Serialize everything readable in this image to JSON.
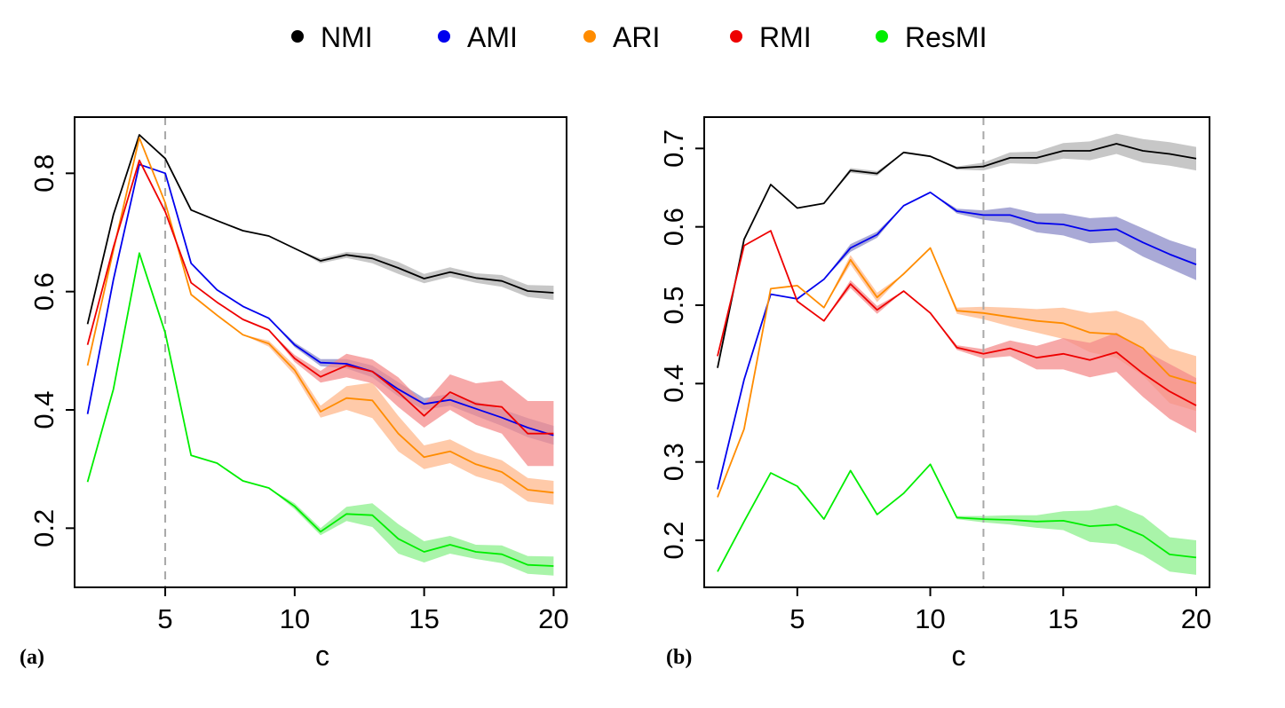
{
  "legend": [
    {
      "label": "NMI",
      "color": "#000000"
    },
    {
      "label": "AMI",
      "color": "#0000ee"
    },
    {
      "label": "ARI",
      "color": "#ff8c00"
    },
    {
      "label": "RMI",
      "color": "#ee0000"
    },
    {
      "label": "ResMI",
      "color": "#00ee00"
    }
  ],
  "chart_data": [
    {
      "type": "line",
      "panel_label": "(a)",
      "xlabel": "c",
      "ylabel": "",
      "xlim": [
        1.5,
        20.5
      ],
      "ylim": [
        0.1,
        0.895
      ],
      "xticks": [
        5,
        10,
        15,
        20
      ],
      "yticks": [
        0.2,
        0.4,
        0.6,
        0.8
      ],
      "ytick_labels": [
        "0.2",
        "0.4",
        "0.6",
        "0.8"
      ],
      "vline": 5,
      "x": [
        2,
        3,
        4,
        5,
        6,
        7,
        8,
        9,
        10,
        11,
        12,
        13,
        14,
        15,
        16,
        17,
        18,
        19,
        20
      ],
      "series": [
        {
          "name": "NMI",
          "color": "#000000",
          "fill": "#b4b4b4",
          "values": [
            0.545,
            0.73,
            0.865,
            0.825,
            0.738,
            0.72,
            0.703,
            0.694,
            0.673,
            0.652,
            0.662,
            0.656,
            0.64,
            0.622,
            0.633,
            0.623,
            0.618,
            0.601,
            0.598
          ],
          "band": [
            0,
            0,
            0,
            0,
            0,
            0,
            0,
            0,
            0,
            0.004,
            0.005,
            0.008,
            0.01,
            0.008,
            0.008,
            0.008,
            0.01,
            0.01,
            0.012
          ]
        },
        {
          "name": "AMI",
          "color": "#0000ee",
          "fill": "#8c8cc8",
          "values": [
            0.393,
            0.62,
            0.815,
            0.8,
            0.648,
            0.603,
            0.575,
            0.555,
            0.51,
            0.48,
            0.478,
            0.465,
            0.435,
            0.41,
            0.417,
            0.402,
            0.387,
            0.37,
            0.357
          ],
          "band": [
            0,
            0,
            0,
            0,
            0,
            0,
            0,
            0,
            0.004,
            0.006,
            0.008,
            0.01,
            0.012,
            0.01,
            0.01,
            0.012,
            0.014,
            0.016,
            0.016
          ]
        },
        {
          "name": "ARI",
          "color": "#ff8c00",
          "fill": "#ffb88c",
          "values": [
            0.475,
            0.67,
            0.86,
            0.75,
            0.595,
            0.56,
            0.527,
            0.512,
            0.467,
            0.397,
            0.42,
            0.416,
            0.36,
            0.32,
            0.33,
            0.308,
            0.295,
            0.265,
            0.26
          ],
          "band": [
            0,
            0,
            0,
            0,
            0,
            0,
            0,
            0.005,
            0.008,
            0.01,
            0.02,
            0.03,
            0.03,
            0.02,
            0.02,
            0.02,
            0.02,
            0.02,
            0.02
          ]
        },
        {
          "name": "RMI",
          "color": "#ee0000",
          "fill": "#f48c8c",
          "values": [
            0.51,
            0.675,
            0.822,
            0.735,
            0.615,
            0.582,
            0.553,
            0.535,
            0.487,
            0.456,
            0.475,
            0.465,
            0.43,
            0.39,
            0.43,
            0.41,
            0.405,
            0.36,
            0.36
          ],
          "band": [
            0,
            0,
            0,
            0,
            0,
            0,
            0,
            0,
            0.006,
            0.01,
            0.02,
            0.02,
            0.025,
            0.02,
            0.03,
            0.035,
            0.045,
            0.055,
            0.055
          ]
        },
        {
          "name": "ResMI",
          "color": "#00ee00",
          "fill": "#8cf08c",
          "values": [
            0.278,
            0.435,
            0.665,
            0.53,
            0.323,
            0.31,
            0.28,
            0.268,
            0.237,
            0.194,
            0.224,
            0.222,
            0.182,
            0.16,
            0.172,
            0.16,
            0.156,
            0.138,
            0.136
          ],
          "band": [
            0,
            0,
            0,
            0,
            0,
            0,
            0,
            0,
            0.005,
            0.006,
            0.012,
            0.02,
            0.025,
            0.018,
            0.015,
            0.012,
            0.015,
            0.015,
            0.016
          ]
        }
      ]
    },
    {
      "type": "line",
      "panel_label": "(b)",
      "xlabel": "c",
      "ylabel": "",
      "xlim": [
        1.5,
        20.5
      ],
      "ylim": [
        0.14,
        0.74
      ],
      "xticks": [
        5,
        10,
        15,
        20
      ],
      "yticks": [
        0.2,
        0.3,
        0.4,
        0.5,
        0.6,
        0.7
      ],
      "ytick_labels": [
        "0.2",
        "0.3",
        "0.4",
        "0.5",
        "0.6",
        "0.7"
      ],
      "vline": 12,
      "x": [
        2,
        3,
        4,
        5,
        6,
        7,
        8,
        9,
        10,
        11,
        12,
        13,
        14,
        15,
        16,
        17,
        18,
        19,
        20
      ],
      "series": [
        {
          "name": "NMI",
          "color": "#000000",
          "fill": "#b4b4b4",
          "values": [
            0.42,
            0.584,
            0.654,
            0.624,
            0.63,
            0.672,
            0.668,
            0.695,
            0.69,
            0.675,
            0.677,
            0.688,
            0.688,
            0.697,
            0.697,
            0.706,
            0.697,
            0.693,
            0.687
          ],
          "band": [
            0,
            0,
            0,
            0,
            0,
            0.003,
            0.003,
            0,
            0,
            0.002,
            0.005,
            0.007,
            0.008,
            0.01,
            0.012,
            0.013,
            0.015,
            0.015,
            0.015
          ]
        },
        {
          "name": "AMI",
          "color": "#0000ee",
          "fill": "#8c8cc8",
          "values": [
            0.265,
            0.405,
            0.514,
            0.508,
            0.533,
            0.573,
            0.59,
            0.627,
            0.644,
            0.62,
            0.615,
            0.615,
            0.605,
            0.603,
            0.595,
            0.597,
            0.58,
            0.565,
            0.552
          ],
          "band": [
            0,
            0,
            0,
            0,
            0,
            0.005,
            0.004,
            0,
            0,
            0.003,
            0.006,
            0.01,
            0.012,
            0.014,
            0.016,
            0.016,
            0.018,
            0.018,
            0.02
          ]
        },
        {
          "name": "ARI",
          "color": "#ff8c00",
          "fill": "#ffb88c",
          "values": [
            0.255,
            0.342,
            0.521,
            0.525,
            0.497,
            0.558,
            0.51,
            0.54,
            0.573,
            0.493,
            0.49,
            0.485,
            0.48,
            0.477,
            0.465,
            0.463,
            0.445,
            0.41,
            0.4
          ],
          "band": [
            0,
            0,
            0,
            0,
            0,
            0.006,
            0.006,
            0,
            0,
            0.004,
            0.008,
            0.012,
            0.015,
            0.02,
            0.025,
            0.03,
            0.035,
            0.035,
            0.035
          ]
        },
        {
          "name": "RMI",
          "color": "#ee0000",
          "fill": "#f48c8c",
          "values": [
            0.435,
            0.576,
            0.595,
            0.505,
            0.48,
            0.527,
            0.494,
            0.518,
            0.49,
            0.446,
            0.438,
            0.445,
            0.433,
            0.438,
            0.43,
            0.44,
            0.413,
            0.39,
            0.372
          ],
          "band": [
            0,
            0,
            0,
            0,
            0,
            0.005,
            0.005,
            0,
            0,
            0.003,
            0.006,
            0.01,
            0.015,
            0.02,
            0.022,
            0.025,
            0.03,
            0.035,
            0.035
          ]
        },
        {
          "name": "ResMI",
          "color": "#00ee00",
          "fill": "#8cf08c",
          "values": [
            0.16,
            0.224,
            0.286,
            0.269,
            0.227,
            0.289,
            0.233,
            0.26,
            0.297,
            0.229,
            0.227,
            0.226,
            0.224,
            0.225,
            0.218,
            0.22,
            0.206,
            0.182,
            0.178
          ],
          "band": [
            0,
            0,
            0,
            0,
            0,
            0,
            0,
            0,
            0,
            0.002,
            0.004,
            0.006,
            0.008,
            0.012,
            0.02,
            0.025,
            0.025,
            0.022,
            0.022
          ]
        }
      ]
    }
  ]
}
